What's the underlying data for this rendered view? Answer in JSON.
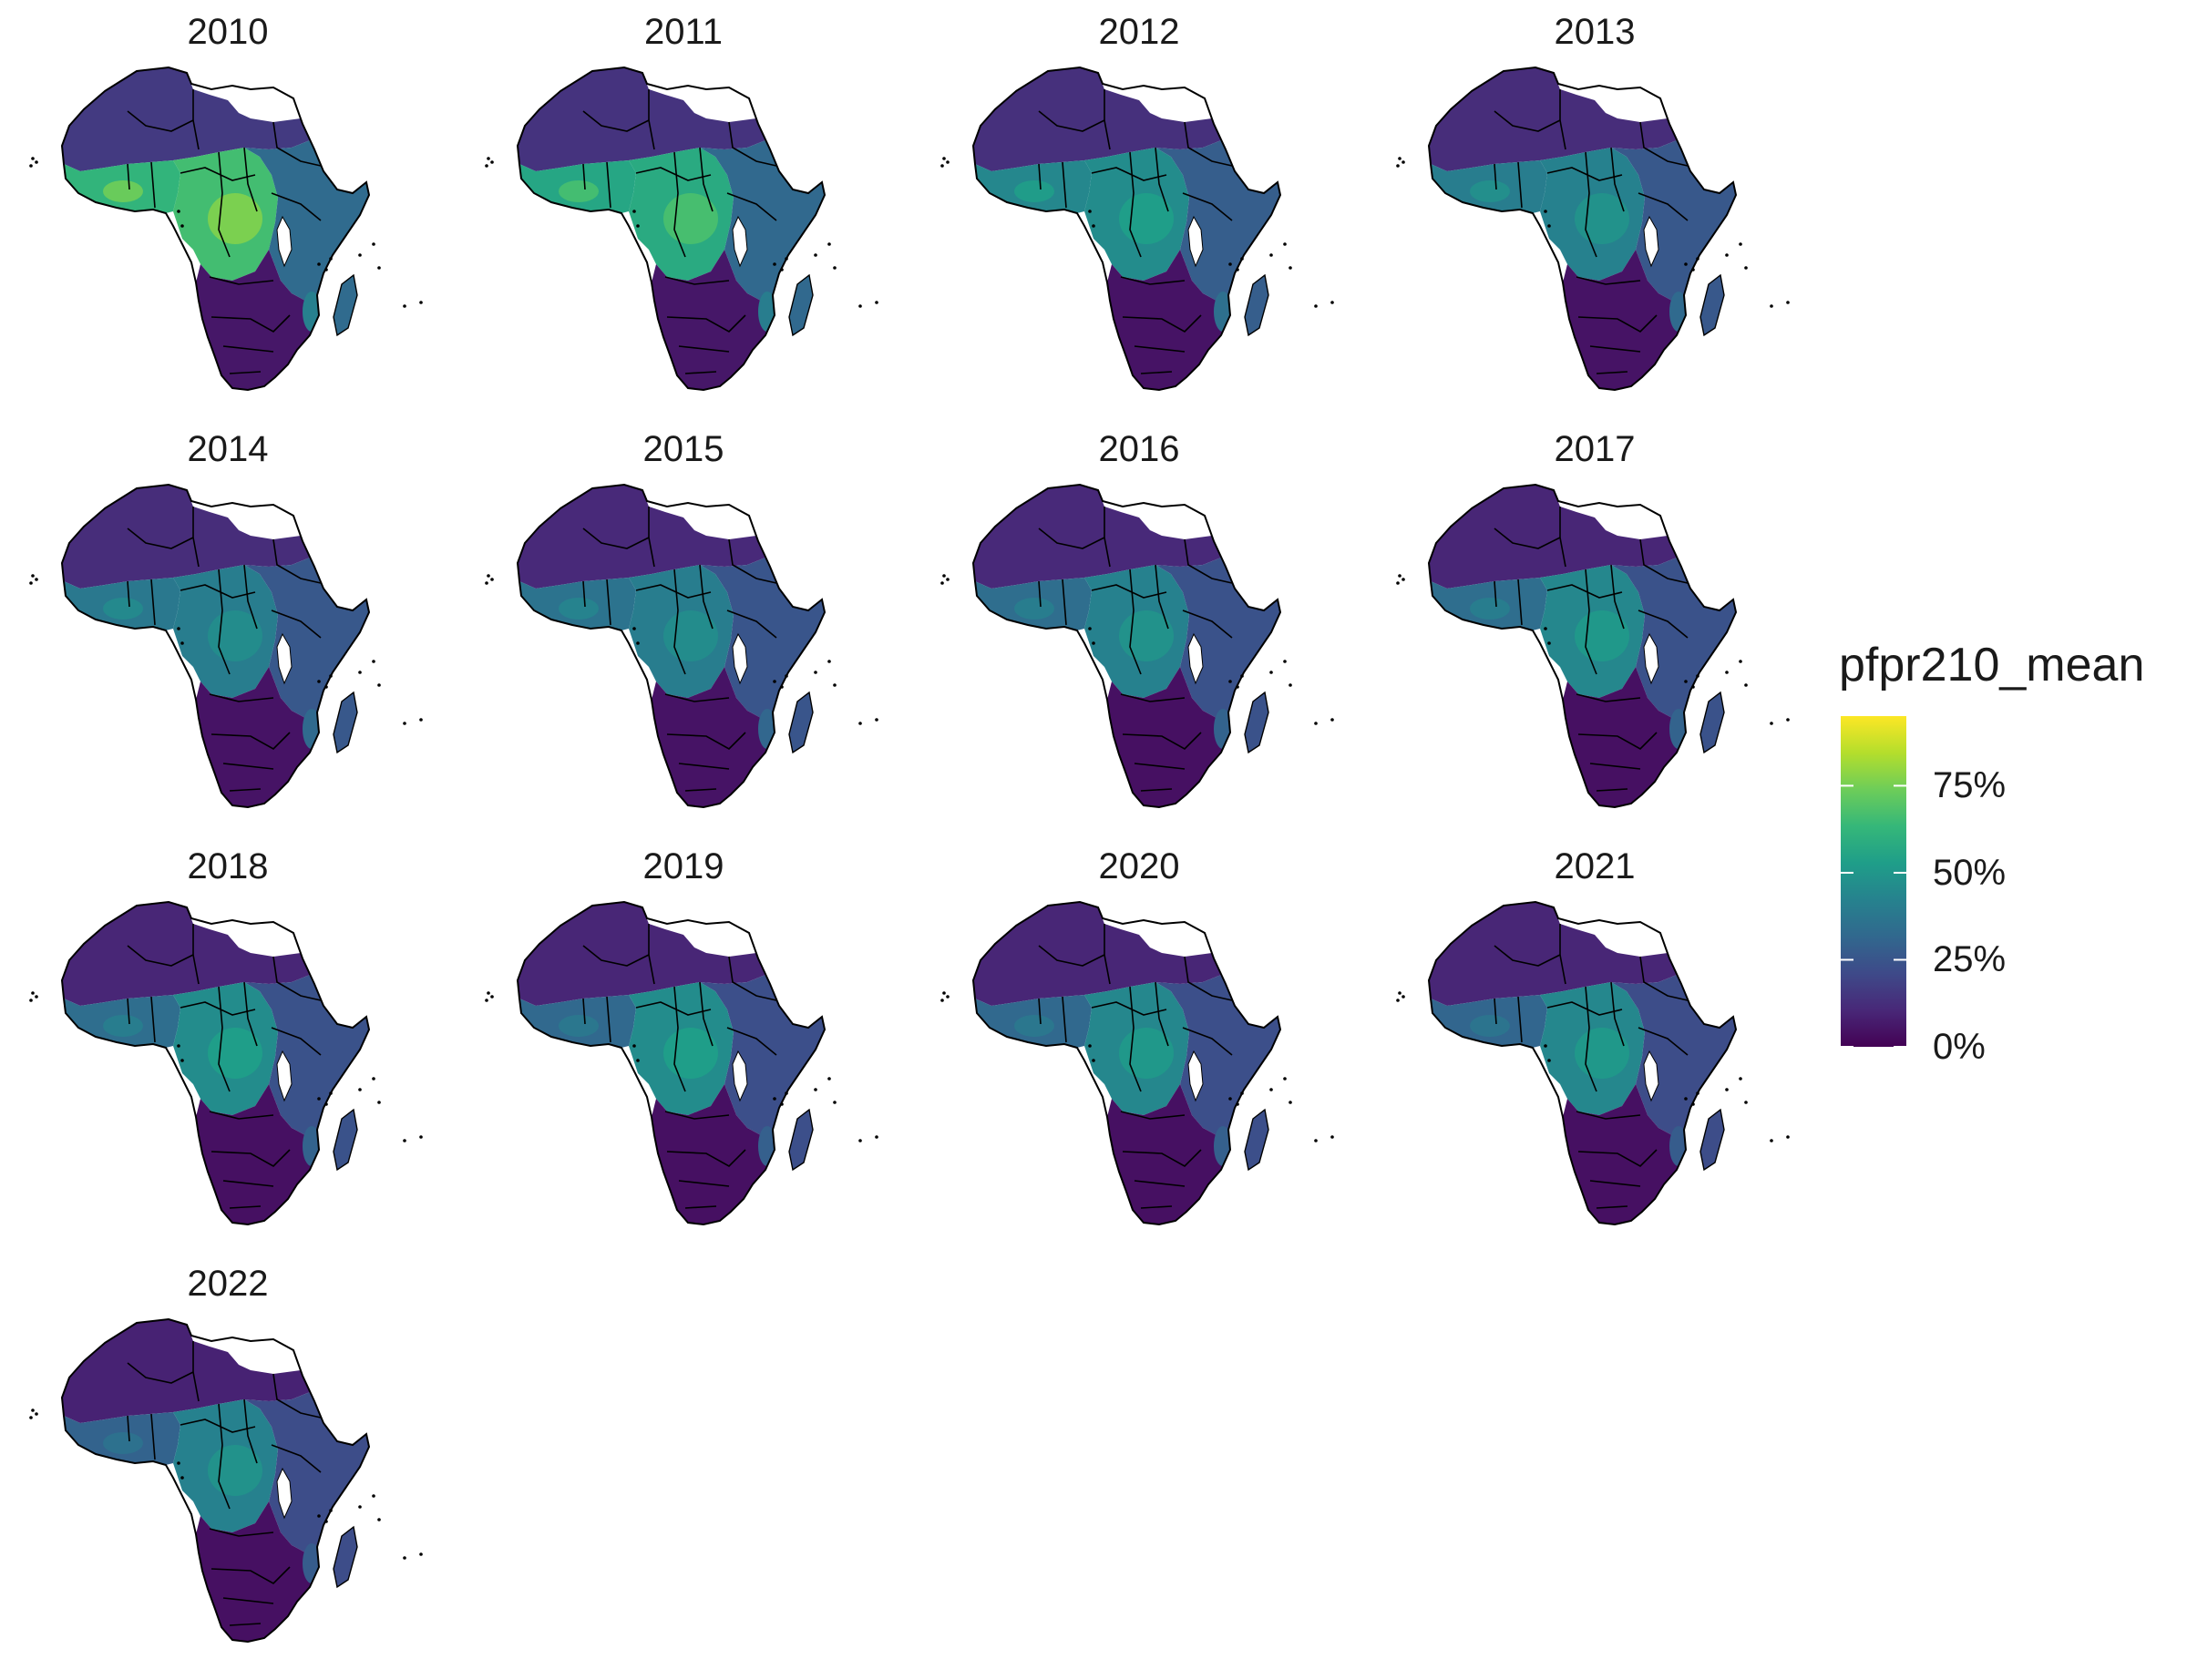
{
  "panels": [
    {
      "year": "2010",
      "wa": 0.62,
      "ca": 0.66,
      "ea": 0.33,
      "sa": 0.06,
      "sahel": 0.16
    },
    {
      "year": "2011",
      "wa": 0.56,
      "ca": 0.58,
      "ea": 0.32,
      "sa": 0.06,
      "sahel": 0.14
    },
    {
      "year": "2012",
      "wa": 0.44,
      "ca": 0.46,
      "ea": 0.28,
      "sa": 0.05,
      "sahel": 0.13
    },
    {
      "year": "2013",
      "wa": 0.4,
      "ca": 0.42,
      "ea": 0.26,
      "sa": 0.05,
      "sahel": 0.12
    },
    {
      "year": "2014",
      "wa": 0.38,
      "ca": 0.4,
      "ea": 0.26,
      "sa": 0.05,
      "sahel": 0.12
    },
    {
      "year": "2015",
      "wa": 0.36,
      "ca": 0.4,
      "ea": 0.25,
      "sa": 0.05,
      "sahel": 0.11
    },
    {
      "year": "2016",
      "wa": 0.34,
      "ca": 0.42,
      "ea": 0.24,
      "sa": 0.04,
      "sahel": 0.11
    },
    {
      "year": "2017",
      "wa": 0.34,
      "ca": 0.44,
      "ea": 0.24,
      "sa": 0.04,
      "sahel": 0.1
    },
    {
      "year": "2018",
      "wa": 0.34,
      "ca": 0.46,
      "ea": 0.24,
      "sa": 0.04,
      "sahel": 0.1
    },
    {
      "year": "2019",
      "wa": 0.32,
      "ca": 0.46,
      "ea": 0.23,
      "sa": 0.04,
      "sahel": 0.1
    },
    {
      "year": "2020",
      "wa": 0.32,
      "ca": 0.44,
      "ea": 0.23,
      "sa": 0.04,
      "sahel": 0.1
    },
    {
      "year": "2021",
      "wa": 0.31,
      "ca": 0.44,
      "ea": 0.22,
      "sa": 0.04,
      "sahel": 0.1
    },
    {
      "year": "2022",
      "wa": 0.3,
      "ca": 0.42,
      "ea": 0.22,
      "sa": 0.04,
      "sahel": 0.09
    }
  ],
  "legend": {
    "title": "pfpr210_mean",
    "ticks": [
      {
        "label": "75%",
        "value": 0.75
      },
      {
        "label": "50%",
        "value": 0.5
      },
      {
        "label": "25%",
        "value": 0.25
      },
      {
        "label": "0%",
        "value": 0.0
      }
    ],
    "range": [
      0,
      0.95
    ]
  },
  "colors": {
    "viridis": [
      "#440154",
      "#482878",
      "#3e4a89",
      "#31688e",
      "#26828e",
      "#1f9e89",
      "#35b779",
      "#6dcd59",
      "#b4de2c",
      "#fde725"
    ],
    "no_data": "#ffffff",
    "border": "#000000"
  }
}
